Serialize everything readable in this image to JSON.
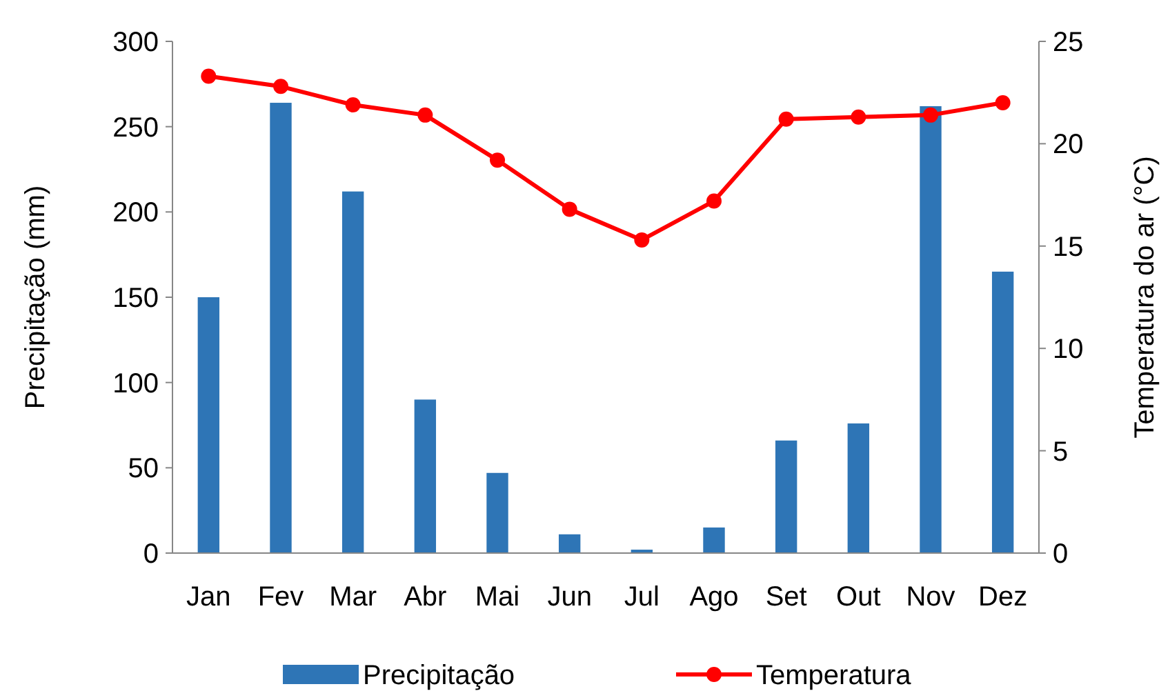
{
  "chart_data": {
    "type": "bar",
    "categories": [
      "Jan",
      "Fev",
      "Mar",
      "Abr",
      "Mai",
      "Jun",
      "Jul",
      "Ago",
      "Set",
      "Out",
      "Nov",
      "Dez"
    ],
    "ylabel": "Precipitação (mm)",
    "y2label": "Temperatura do ar (°C)",
    "ylim": [
      0,
      300
    ],
    "yticks": [
      0,
      50,
      100,
      150,
      200,
      250,
      300
    ],
    "y2lim": [
      0,
      25
    ],
    "y2ticks": [
      0,
      5,
      10,
      15,
      20,
      25
    ],
    "legend": "bottom",
    "grid": false,
    "series": [
      {
        "name": "Precipitação",
        "color": "#2e75b6",
        "values": [
          150,
          264,
          212,
          90,
          47,
          11,
          2,
          15,
          66,
          76,
          262,
          165
        ]
      },
      {
        "name": "Temperatura",
        "type": "line",
        "axis": "y2",
        "color": "#ff0000",
        "marker": "circle",
        "values": [
          23.3,
          22.8,
          21.9,
          21.4,
          19.2,
          16.8,
          15.3,
          17.2,
          21.2,
          21.3,
          21.4,
          22.0
        ]
      }
    ]
  }
}
